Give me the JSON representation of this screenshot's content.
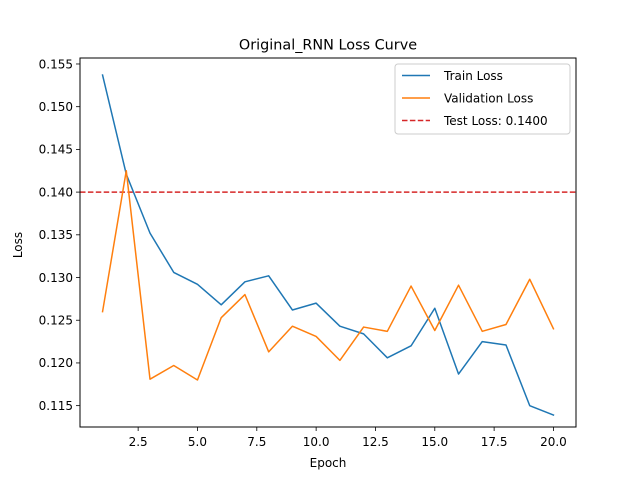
{
  "chart_data": {
    "type": "line",
    "title": "Original_RNN Loss Curve",
    "xlabel": "Epoch",
    "ylabel": "Loss",
    "xlim": [
      0.05,
      20.95
    ],
    "ylim": [
      0.1125,
      0.1557
    ],
    "xticks": [
      2.5,
      5.0,
      7.5,
      10.0,
      12.5,
      15.0,
      17.5,
      20.0
    ],
    "xtick_labels": [
      "2.5",
      "5.0",
      "7.5",
      "10.0",
      "12.5",
      "15.0",
      "17.5",
      "20.0"
    ],
    "yticks": [
      0.115,
      0.12,
      0.125,
      0.13,
      0.135,
      0.14,
      0.145,
      0.15,
      0.155
    ],
    "ytick_labels": [
      "0.115",
      "0.120",
      "0.125",
      "0.130",
      "0.135",
      "0.140",
      "0.145",
      "0.150",
      "0.155"
    ],
    "grid": false,
    "legend_position": "upper right",
    "x": [
      1,
      2,
      3,
      4,
      5,
      6,
      7,
      8,
      9,
      10,
      11,
      12,
      13,
      14,
      15,
      16,
      17,
      18,
      19,
      20
    ],
    "series": [
      {
        "name": "Train Loss",
        "color": "#1f77b4",
        "style": "solid",
        "values": [
          0.1537,
          0.1421,
          0.1352,
          0.1306,
          0.1292,
          0.1268,
          0.1295,
          0.1302,
          0.1262,
          0.127,
          0.1243,
          0.1234,
          0.1206,
          0.122,
          0.1264,
          0.1187,
          0.1225,
          0.1221,
          0.115,
          0.1139
        ]
      },
      {
        "name": "Validation Loss",
        "color": "#ff7f0e",
        "style": "solid",
        "values": [
          0.126,
          0.1425,
          0.1181,
          0.1197,
          0.118,
          0.1253,
          0.128,
          0.1213,
          0.1243,
          0.1231,
          0.1203,
          0.1242,
          0.1237,
          0.129,
          0.1238,
          0.1291,
          0.1237,
          0.1245,
          0.1298,
          0.124
        ]
      }
    ],
    "reference_lines": [
      {
        "name": "Test Loss: 0.1400",
        "orientation": "horizontal",
        "value": 0.14,
        "color": "#d62728",
        "style": "dashed"
      }
    ]
  }
}
